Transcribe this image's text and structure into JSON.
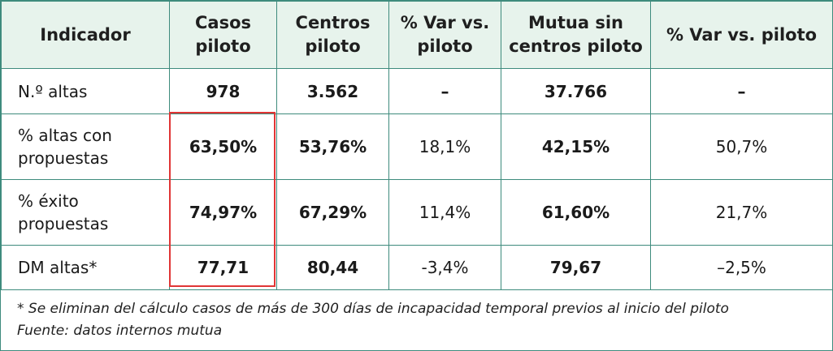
{
  "header": [
    "Indicador",
    "Casos piloto",
    "Centros piloto",
    "% Var vs. piloto",
    "Mutua sin centros piloto",
    "% Var vs. piloto"
  ],
  "rows": [
    [
      "N.º altas",
      "978",
      "3.562",
      "–",
      "37.766",
      "–"
    ],
    [
      "% altas con propuestas",
      "63,50%",
      "53,76%",
      "18,1%",
      "42,15%",
      "50,7%"
    ],
    [
      "% éxito propuestas",
      "74,97%",
      "67,29%",
      "11,4%",
      "61,60%",
      "21,7%"
    ],
    [
      "DM altas*",
      "77,71",
      "80,44",
      "-3,4%",
      "79,67",
      "–2,5%"
    ]
  ],
  "footnote": "* Se eliminan del cálculo casos de más de 300 días de incapacidad temporal previos al inicio del piloto",
  "source": "Fuente: datos internos mutua",
  "colors": {
    "border": "#3e8b7d",
    "header_bg": "#e7f3ec",
    "highlight": "#e03535"
  }
}
